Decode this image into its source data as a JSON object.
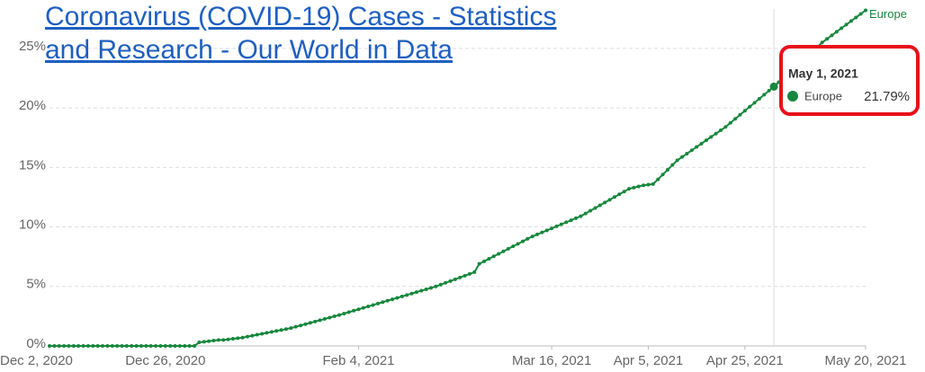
{
  "chart_data": {
    "type": "line",
    "link_text": [
      "Coronavirus (COVID-19) Cases - Statistics",
      "and Research - Our World in Data"
    ],
    "x": [
      "2020-12-02",
      "2020-12-03",
      "2020-12-04",
      "2020-12-05",
      "2020-12-06",
      "2020-12-07",
      "2020-12-08",
      "2020-12-09",
      "2020-12-10",
      "2020-12-11",
      "2020-12-12",
      "2020-12-13",
      "2020-12-14",
      "2020-12-15",
      "2020-12-16",
      "2020-12-17",
      "2020-12-18",
      "2020-12-19",
      "2020-12-20",
      "2020-12-21",
      "2020-12-22",
      "2020-12-23",
      "2020-12-24",
      "2020-12-25",
      "2020-12-26",
      "2020-12-27",
      "2020-12-28",
      "2020-12-29",
      "2020-12-30",
      "2020-12-31",
      "2021-01-01",
      "2021-01-02",
      "2021-01-03",
      "2021-01-04",
      "2021-01-05",
      "2021-01-06",
      "2021-01-07",
      "2021-01-08",
      "2021-01-09",
      "2021-01-10",
      "2021-01-11",
      "2021-01-12",
      "2021-01-13",
      "2021-01-14",
      "2021-01-15",
      "2021-01-16",
      "2021-01-17",
      "2021-01-18",
      "2021-01-19",
      "2021-01-20",
      "2021-01-21",
      "2021-01-22",
      "2021-01-23",
      "2021-01-24",
      "2021-01-25",
      "2021-01-26",
      "2021-01-27",
      "2021-01-28",
      "2021-01-29",
      "2021-01-30",
      "2021-01-31",
      "2021-02-01",
      "2021-02-02",
      "2021-02-03",
      "2021-02-04",
      "2021-02-05",
      "2021-02-06",
      "2021-02-07",
      "2021-02-08",
      "2021-02-09",
      "2021-02-10",
      "2021-02-11",
      "2021-02-12",
      "2021-02-13",
      "2021-02-14",
      "2021-02-15",
      "2021-02-16",
      "2021-02-17",
      "2021-02-18",
      "2021-02-19",
      "2021-02-20",
      "2021-02-21",
      "2021-02-22",
      "2021-02-23",
      "2021-02-24",
      "2021-02-25",
      "2021-02-26",
      "2021-02-27",
      "2021-02-28",
      "2021-03-01",
      "2021-03-02",
      "2021-03-03",
      "2021-03-04",
      "2021-03-05",
      "2021-03-06",
      "2021-03-07",
      "2021-03-08",
      "2021-03-09",
      "2021-03-10",
      "2021-03-11",
      "2021-03-12",
      "2021-03-13",
      "2021-03-14",
      "2021-03-15",
      "2021-03-16",
      "2021-03-17",
      "2021-03-18",
      "2021-03-19",
      "2021-03-20",
      "2021-03-21",
      "2021-03-22",
      "2021-03-23",
      "2021-03-24",
      "2021-03-25",
      "2021-03-26",
      "2021-03-27",
      "2021-03-28",
      "2021-03-29",
      "2021-03-30",
      "2021-03-31",
      "2021-04-01",
      "2021-04-02",
      "2021-04-03",
      "2021-04-04",
      "2021-04-05",
      "2021-04-06",
      "2021-04-07",
      "2021-04-08",
      "2021-04-09",
      "2021-04-10",
      "2021-04-11",
      "2021-04-12",
      "2021-04-13",
      "2021-04-14",
      "2021-04-15",
      "2021-04-16",
      "2021-04-17",
      "2021-04-18",
      "2021-04-19",
      "2021-04-20",
      "2021-04-21",
      "2021-04-22",
      "2021-04-23",
      "2021-04-24",
      "2021-04-25",
      "2021-04-26",
      "2021-04-27",
      "2021-04-28",
      "2021-04-29",
      "2021-04-30",
      "2021-05-01",
      "2021-05-02",
      "2021-05-03",
      "2021-05-04",
      "2021-05-05",
      "2021-05-06",
      "2021-05-07",
      "2021-05-08",
      "2021-05-09",
      "2021-05-10",
      "2021-05-11",
      "2021-05-12",
      "2021-05-13",
      "2021-05-14",
      "2021-05-15",
      "2021-05-16",
      "2021-05-17",
      "2021-05-18",
      "2021-05-19",
      "2021-05-20"
    ],
    "series": [
      {
        "name": "Europe",
        "color": "#18873e",
        "values": [
          0,
          0,
          0,
          0,
          0,
          0,
          0,
          0,
          0,
          0,
          0,
          0,
          0,
          0,
          0,
          0,
          0,
          0,
          0,
          0,
          0,
          0,
          0,
          0,
          0,
          0,
          0,
          0,
          0,
          0,
          0,
          0.3,
          0.35,
          0.4,
          0.45,
          0.5,
          0.5,
          0.55,
          0.6,
          0.65,
          0.7,
          0.78,
          0.86,
          0.94,
          1.02,
          1.1,
          1.18,
          1.26,
          1.34,
          1.42,
          1.5,
          1.61,
          1.72,
          1.83,
          1.94,
          2.05,
          2.16,
          2.27,
          2.38,
          2.49,
          2.6,
          2.72,
          2.84,
          2.96,
          3.08,
          3.2,
          3.32,
          3.44,
          3.56,
          3.68,
          3.8,
          3.92,
          4.04,
          4.16,
          4.28,
          4.4,
          4.52,
          4.64,
          4.76,
          4.88,
          5.0,
          5.15,
          5.3,
          5.45,
          5.6,
          5.75,
          5.9,
          6.05,
          6.2,
          6.9,
          7.11,
          7.32,
          7.53,
          7.74,
          7.95,
          8.16,
          8.37,
          8.58,
          8.79,
          9.0,
          9.2,
          9.37,
          9.54,
          9.71,
          9.88,
          10.05,
          10.22,
          10.39,
          10.56,
          10.73,
          10.9,
          11.13,
          11.36,
          11.59,
          11.82,
          12.05,
          12.28,
          12.51,
          12.74,
          12.97,
          13.2,
          13.3,
          13.4,
          13.5,
          13.55,
          13.6,
          14.0,
          14.4,
          14.8,
          15.2,
          15.6,
          15.88,
          16.16,
          16.44,
          16.72,
          17.0,
          17.28,
          17.56,
          17.84,
          18.12,
          18.4,
          18.74,
          19.08,
          19.42,
          19.76,
          20.1,
          20.43,
          20.77,
          21.11,
          21.45,
          21.79,
          22.16,
          22.53,
          22.9,
          23.27,
          23.64,
          24.01,
          24.38,
          24.75,
          25.12,
          25.5,
          25.8,
          26.1,
          26.4,
          26.7,
          27.0,
          27.3,
          27.6,
          27.9,
          28.2
        ]
      }
    ],
    "xlim": [
      "2020-12-02",
      "2021-05-20"
    ],
    "xticks": [
      {
        "value": "2020-12-02",
        "label": "Dec 2, 2020"
      },
      {
        "value": "2020-12-26",
        "label": "Dec 26, 2020"
      },
      {
        "value": "2021-02-04",
        "label": "Feb 4, 2021"
      },
      {
        "value": "2021-03-16",
        "label": "Mar 16, 2021"
      },
      {
        "value": "2021-04-05",
        "label": "Apr 5, 2021"
      },
      {
        "value": "2021-04-25",
        "label": "Apr 25, 2021"
      },
      {
        "value": "2021-05-20",
        "label": "May 20, 2021"
      }
    ],
    "ylim": [
      0,
      28.2
    ],
    "yticks": [
      {
        "value": 0,
        "label": "0%"
      },
      {
        "value": 5,
        "label": "5%"
      },
      {
        "value": 10,
        "label": "10%"
      },
      {
        "value": 15,
        "label": "15%"
      },
      {
        "value": 20,
        "label": "20%"
      },
      {
        "value": 25,
        "label": "25%"
      }
    ],
    "grid": true,
    "tooltip": {
      "index": 150,
      "label": "May 1, 2021",
      "value_label": "21.79%"
    }
  }
}
